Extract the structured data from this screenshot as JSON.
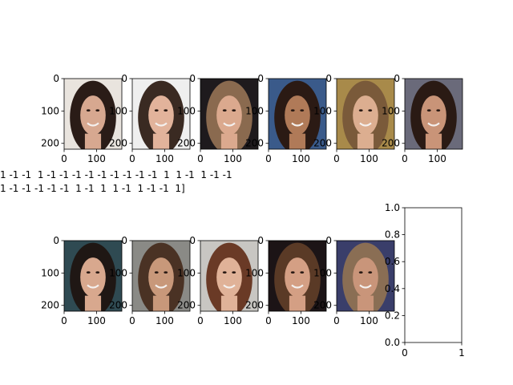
{
  "figure": {
    "attribute_text_line1": "1 -1 -1  1 -1 -1 -1 -1 -1 -1 -1 -1 -1  1  1 -1  1 -1 -1",
    "attribute_text_line2": "1 -1 -1 -1 -1 -1  1 -1  1  1 -1  1 -1 -1  1]"
  },
  "chart_data": [
    {
      "type": "image",
      "panel": 1,
      "xlim": [
        0,
        178
      ],
      "ylim": [
        218,
        0
      ],
      "xticks": [
        "0",
        "100"
      ],
      "yticks": [
        "0",
        "100",
        "200"
      ],
      "tone": {
        "bg": "#e9e4de",
        "hair": "#2a1c17",
        "skin": "#d7a890"
      }
    },
    {
      "type": "image",
      "panel": 2,
      "xlim": [
        0,
        178
      ],
      "ylim": [
        218,
        0
      ],
      "xticks": [
        "0",
        "100"
      ],
      "yticks": [
        "0",
        "100",
        "200"
      ],
      "tone": {
        "bg": "#efefef",
        "hair": "#3a2a22",
        "skin": "#e2b39b"
      }
    },
    {
      "type": "image",
      "panel": 3,
      "xlim": [
        0,
        178
      ],
      "ylim": [
        218,
        0
      ],
      "xticks": [
        "0",
        "100"
      ],
      "yticks": [
        "0",
        "100",
        "200"
      ],
      "tone": {
        "bg": "#1e1a1d",
        "hair": "#8a6a4f",
        "skin": "#dba98e"
      }
    },
    {
      "type": "image",
      "panel": 4,
      "xlim": [
        0,
        178
      ],
      "ylim": [
        218,
        0
      ],
      "xticks": [
        "0",
        "100"
      ],
      "yticks": [
        "0",
        "100",
        "200"
      ],
      "tone": {
        "bg": "#3a5a8a",
        "hair": "#2b1a14",
        "skin": "#b07a58"
      }
    },
    {
      "type": "image",
      "panel": 5,
      "xlim": [
        0,
        178
      ],
      "ylim": [
        218,
        0
      ],
      "xticks": [
        "0",
        "100"
      ],
      "yticks": [
        "0",
        "100",
        "200"
      ],
      "tone": {
        "bg": "#a88a4a",
        "hair": "#7a5a3a",
        "skin": "#dcae90"
      }
    },
    {
      "type": "image",
      "panel": 6,
      "xlim": [
        0,
        178
      ],
      "ylim": [
        218,
        0
      ],
      "xticks": [
        "0",
        "100"
      ],
      "yticks": [
        "0",
        "100",
        "200"
      ],
      "tone": {
        "bg": "#6a6a7a",
        "hair": "#2a1a14",
        "skin": "#c99478"
      }
    },
    {
      "type": "image",
      "panel": 7,
      "xlim": [
        0,
        178
      ],
      "ylim": [
        218,
        0
      ],
      "xticks": [
        "0",
        "100"
      ],
      "yticks": [
        "0",
        "100",
        "200"
      ],
      "tone": {
        "bg": "#2f4a52",
        "hair": "#1f1714",
        "skin": "#d8a88e"
      }
    },
    {
      "type": "image",
      "panel": 8,
      "xlim": [
        0,
        178
      ],
      "ylim": [
        218,
        0
      ],
      "xticks": [
        "0",
        "100"
      ],
      "yticks": [
        "0",
        "100",
        "200"
      ],
      "tone": {
        "bg": "#8a8a86",
        "hair": "#4a3224",
        "skin": "#c8987a"
      }
    },
    {
      "type": "image",
      "panel": 9,
      "xlim": [
        0,
        178
      ],
      "ylim": [
        218,
        0
      ],
      "xticks": [
        "0",
        "100"
      ],
      "yticks": [
        "0",
        "100",
        "200"
      ],
      "tone": {
        "bg": "#c8c6c2",
        "hair": "#6a3a26",
        "skin": "#e0b298"
      }
    },
    {
      "type": "image",
      "panel": 10,
      "xlim": [
        0,
        178
      ],
      "ylim": [
        218,
        0
      ],
      "xticks": [
        "0",
        "100"
      ],
      "yticks": [
        "0",
        "100",
        "200"
      ],
      "tone": {
        "bg": "#1c1416",
        "hair": "#5a3a26",
        "skin": "#d49f84"
      }
    },
    {
      "type": "image",
      "panel": 11,
      "xlim": [
        0,
        178
      ],
      "ylim": [
        218,
        0
      ],
      "xticks": [
        "0",
        "100"
      ],
      "yticks": [
        "0",
        "100",
        "200"
      ],
      "tone": {
        "bg": "#3a3e6a",
        "hair": "#8a6e54",
        "skin": "#c9957a"
      }
    },
    {
      "type": "empty",
      "panel": 12,
      "xlim": [
        0,
        1
      ],
      "ylim": [
        0,
        1
      ],
      "xticks": [
        "0",
        "1"
      ],
      "yticks": [
        "0.0",
        "0.2",
        "0.4",
        "0.6",
        "0.8",
        "1.0"
      ]
    }
  ]
}
